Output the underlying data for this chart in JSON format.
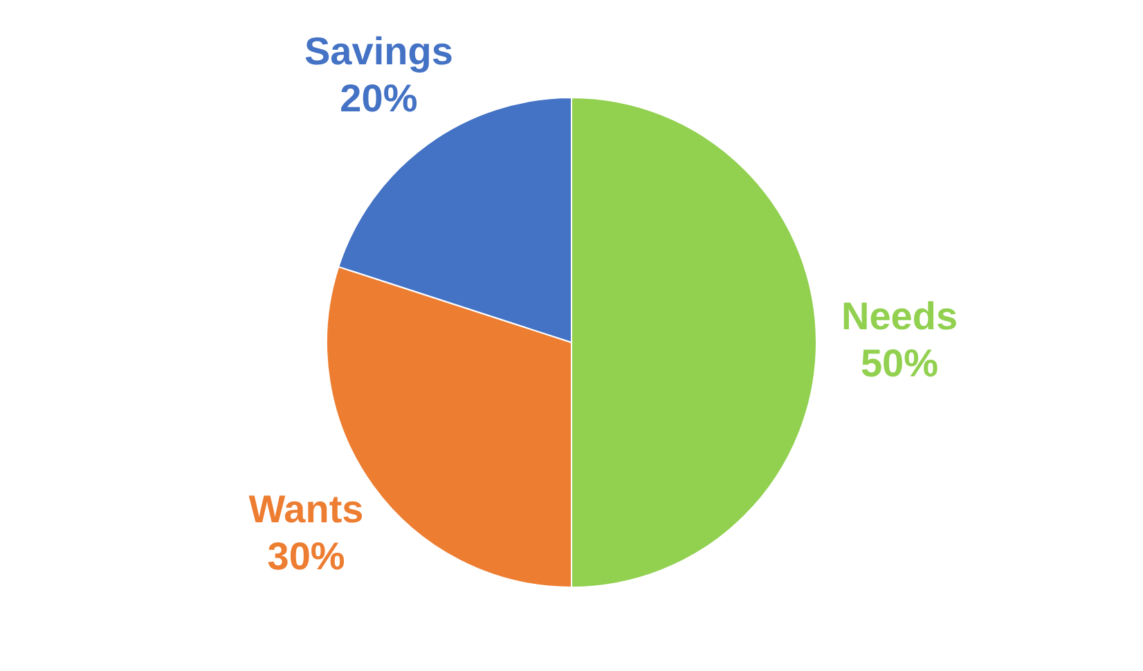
{
  "chart_data": {
    "type": "pie",
    "categories": [
      "Needs",
      "Wants",
      "Savings"
    ],
    "values": [
      50,
      30,
      20
    ],
    "colors": [
      "#92d050",
      "#ed7d31",
      "#4472c4"
    ],
    "value_labels": [
      "50%",
      "30%",
      "20%"
    ]
  }
}
